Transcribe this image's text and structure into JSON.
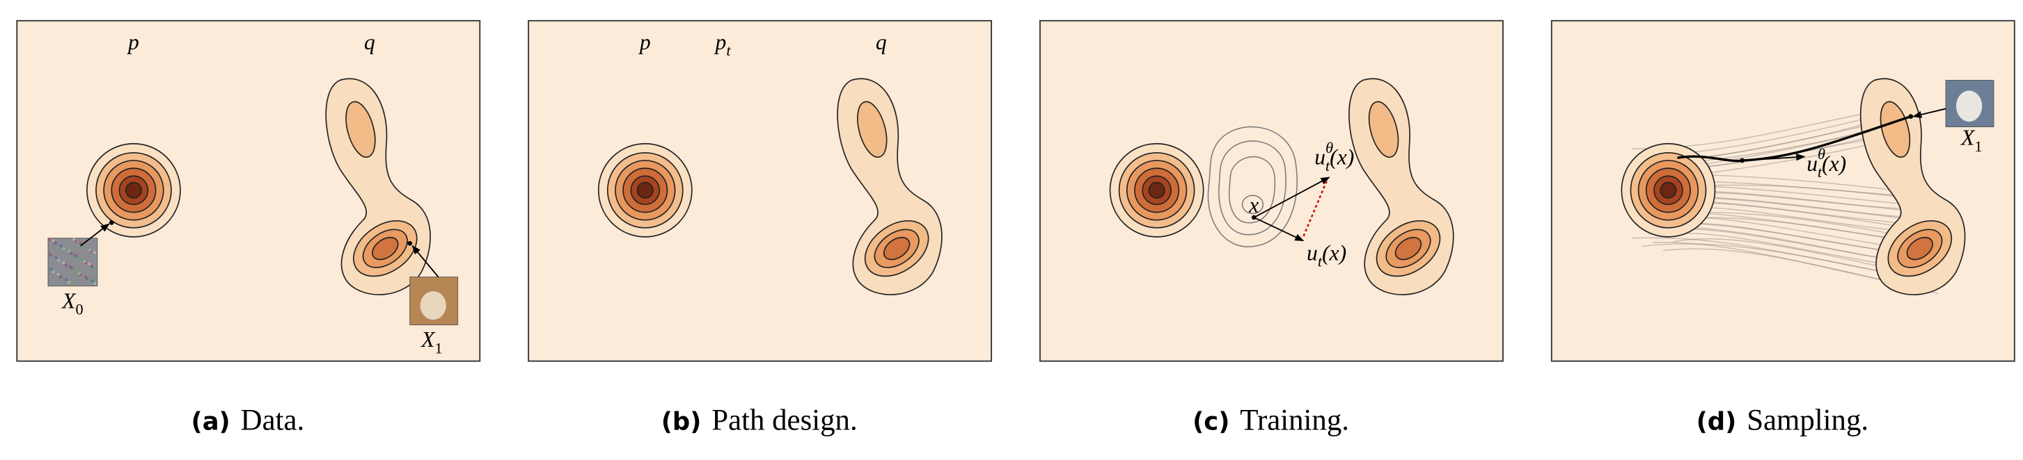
{
  "panels": [
    {
      "caption": {
        "label": "(a)",
        "text": "Data."
      },
      "labels": [
        {
          "base": "p"
        },
        {
          "base": "q"
        },
        {
          "base": "X",
          "sub": "0"
        },
        {
          "base": "X",
          "sub": "1"
        }
      ]
    },
    {
      "caption": {
        "label": "(b)",
        "text": "Path design."
      },
      "labels": [
        {
          "base": "p"
        },
        {
          "base": "p",
          "sub": "t"
        },
        {
          "base": "q"
        }
      ]
    },
    {
      "caption": {
        "label": "(c)",
        "text": "Training."
      },
      "labels": [
        {
          "base": "u",
          "sub": "t",
          "sup": "θ",
          "arg": "(x)"
        },
        {
          "base": "x"
        },
        {
          "base": "u",
          "sub": "t",
          "arg": "(x)"
        }
      ]
    },
    {
      "caption": {
        "label": "(d)",
        "text": "Sampling."
      },
      "labels": [
        {
          "base": "u",
          "sub": "t",
          "sup": "θ",
          "arg": "(x)"
        },
        {
          "base": "X",
          "sub": "1"
        }
      ]
    }
  ]
}
